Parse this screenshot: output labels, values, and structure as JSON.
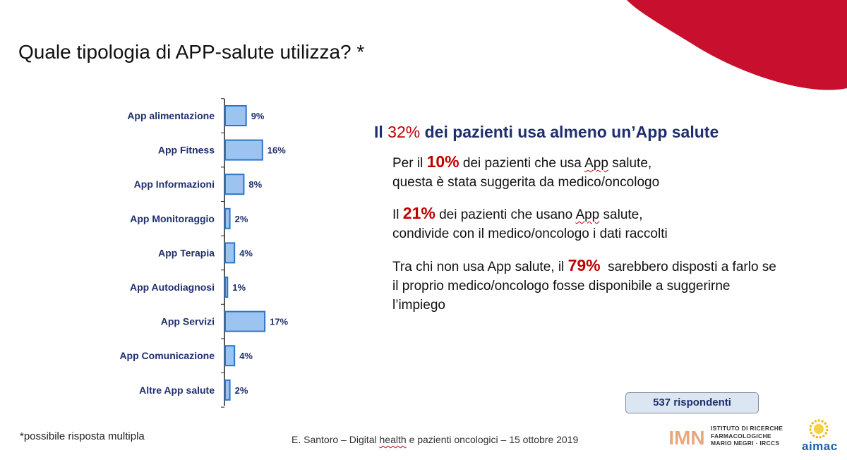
{
  "title": "Quale tipologia di APP-salute utilizza? *",
  "headline": {
    "prefix": "Il",
    "pct": "32%",
    "suffix": "dei pazienti usa almeno un’App salute"
  },
  "paragraphs": [
    {
      "before": "Per il",
      "pct": "10%",
      "mid": "dei pazienti che usa",
      "word": "App",
      "after": "salute,",
      "line2": "questa è stata suggerita da medico/oncologo"
    },
    {
      "before": "Il",
      "pct": "21%",
      "mid": "dei pazienti che usano",
      "word": "App",
      "after": "salute,",
      "line2": "condivide con il medico/oncologo i dati raccolti"
    },
    {
      "before": "Tra chi non usa App salute, il",
      "pct": "79%",
      "after": "sarebbero disposti a farlo se",
      "line2": "il proprio medico/oncologo fosse disponibile a suggerirne",
      "line3": "l’impiego"
    }
  ],
  "respondents": "537 rispondenti",
  "note": "*possibile risposta multipla",
  "footer": {
    "before": "E. Santoro  – Digital",
    "underlined": "health",
    "after": "e pazienti oncologici  – 15 ottobre  2019"
  },
  "logos": {
    "imn_mark": "IMN",
    "imn_lines": [
      "ISTITUTO DI RICERCHE",
      "FARMACOLOGICHE",
      "MARIO NEGRI · IRCCS"
    ],
    "aimac": "aimac"
  },
  "colors": {
    "accent_red": "#C8102E",
    "navy": "#1F2F6E",
    "bar_fill": "#9DC3F0",
    "bar_stroke": "#2E75C7",
    "highlight": "#C00000"
  },
  "chart_data": {
    "type": "bar",
    "orientation": "horizontal",
    "categories": [
      "App alimentazione",
      "App Fitness",
      "App Informazioni",
      "App Monitoraggio",
      "App Terapia",
      "App Autodiagnosi",
      "App Servizi",
      "App Comunicazione",
      "Altre App salute"
    ],
    "values": [
      9,
      16,
      8,
      2,
      4,
      1,
      17,
      4,
      2
    ],
    "value_labels": [
      "9%",
      "16%",
      "8%",
      "2%",
      "4%",
      "1%",
      "17%",
      "4%",
      "2%"
    ],
    "unit": "%",
    "grid": false,
    "legend": "none"
  }
}
